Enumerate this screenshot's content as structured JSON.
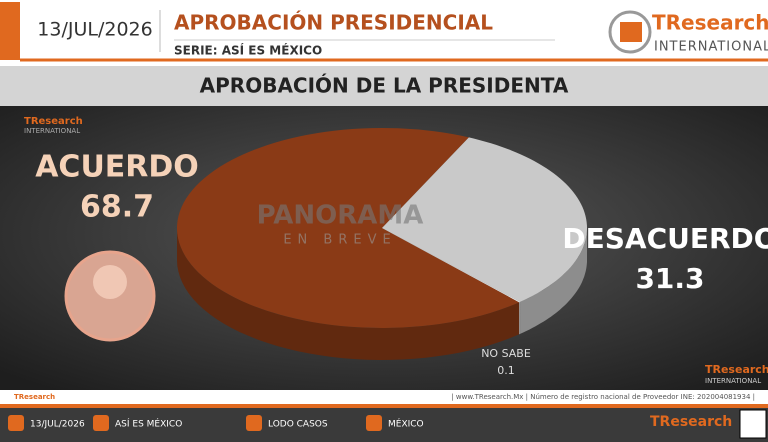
{
  "header": {
    "date": "13/JUL/2026",
    "title": "APROBACIÓN PRESIDENCIAL",
    "series": "SERIE: ASÍ ES MÉXICO",
    "logo": "TResearch",
    "logo_sub": "INTERNATIONAL"
  },
  "chart_data": {
    "type": "pie",
    "title": "APROBACIÓN DE LA PRESIDENTA",
    "categories": [
      "ACUERDO",
      "DESACUERDO",
      "NO SABE"
    ],
    "values": [
      68.7,
      31.3,
      0.1
    ],
    "colors": [
      "#8a3a16",
      "#c9c9c9",
      "#f0f0f0"
    ]
  },
  "watermark": {
    "title": "PANORAMA",
    "subtitle": "EN BREVE"
  },
  "footer": {
    "note": "| www.TResearch.Mx | Número de registro nacional de Proveedor INE: 202004081934 |",
    "items": [
      "13/JUL/2026",
      "ASÍ ES MÉXICO",
      "LODO CASOS",
      "MÉXICO"
    ]
  }
}
